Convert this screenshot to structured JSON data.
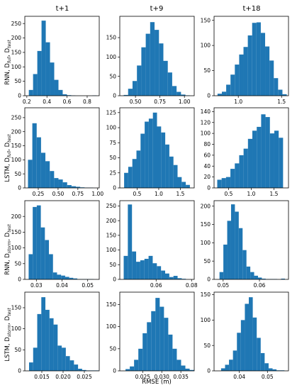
{
  "figure": {
    "xlabel": "RMSE (m)",
    "column_titles": [
      "t+1",
      "t+9",
      "t+18"
    ],
    "row_labels": [
      [
        "RNN, D",
        "full",
        ", D",
        "test"
      ],
      [
        "LSTM, D",
        "full",
        ", D",
        "test"
      ],
      [
        "RNN, D",
        "storm",
        ", D",
        "test"
      ],
      [
        "LSTM, D",
        "storm",
        ", D",
        "test"
      ]
    ]
  },
  "colors": {
    "bar": "#1f77b4"
  },
  "chart_data": [
    {
      "type": "bar",
      "row": 0,
      "col": 0,
      "title": "t+1",
      "xlim": [
        0.18,
        0.92
      ],
      "ylim": [
        0,
        275
      ],
      "xticks": [
        0.2,
        0.4,
        0.6,
        0.8
      ],
      "xticklabels": [
        "0.2",
        "0.4",
        "0.6",
        "0.8"
      ],
      "yticks": [
        0,
        50,
        100,
        150,
        200,
        250
      ],
      "yticklabels": [
        "0",
        "50",
        "100",
        "150",
        "200",
        "250"
      ],
      "bin_start": 0.22,
      "bin_width": 0.0421,
      "values": [
        20,
        75,
        155,
        260,
        185,
        115,
        55,
        20,
        5,
        2,
        1,
        0,
        0,
        0,
        0,
        1
      ]
    },
    {
      "type": "bar",
      "row": 0,
      "col": 1,
      "title": "t+9",
      "xlim": [
        0.34,
        1.1
      ],
      "ylim": [
        0,
        205
      ],
      "xticks": [
        0.5,
        0.75,
        1.0
      ],
      "xticklabels": [
        "0.50",
        "0.75",
        "1.00"
      ],
      "yticks": [
        0,
        50,
        100,
        150
      ],
      "yticklabels": [
        "0",
        "50",
        "100",
        "150"
      ],
      "bin_start": 0.38,
      "bin_width": 0.045,
      "values": [
        2,
        18,
        38,
        78,
        125,
        160,
        190,
        170,
        135,
        90,
        60,
        25,
        10,
        3,
        1
      ]
    },
    {
      "type": "bar",
      "row": 0,
      "col": 2,
      "title": "t+18",
      "xlim": [
        0.72,
        1.58
      ],
      "ylim": [
        0,
        158
      ],
      "xticks": [
        1.0,
        1.5
      ],
      "xticklabels": [
        "1.0",
        "1.5"
      ],
      "yticks": [
        0,
        50,
        100,
        150
      ],
      "yticklabels": [
        "0",
        "50",
        "100",
        "150"
      ],
      "bin_start": 0.76,
      "bin_width": 0.05,
      "values": [
        4,
        8,
        22,
        42,
        62,
        82,
        97,
        120,
        145,
        146,
        125,
        98,
        70,
        35,
        12,
        3
      ]
    },
    {
      "type": "bar",
      "row": 1,
      "col": 0,
      "xlim": [
        0.08,
        1.02
      ],
      "ylim": [
        0,
        285
      ],
      "xticks": [
        0.25,
        0.5,
        0.75,
        1.0
      ],
      "xticklabels": [
        "0.25",
        "0.50",
        "0.75",
        "1.00"
      ],
      "yticks": [
        0,
        50,
        100,
        150,
        200,
        250
      ],
      "yticklabels": [
        "0",
        "50",
        "100",
        "150",
        "200",
        "250"
      ],
      "bin_start": 0.12,
      "bin_width": 0.055,
      "values": [
        100,
        230,
        180,
        125,
        95,
        60,
        35,
        30,
        20,
        10,
        6,
        4,
        2,
        1,
        1
      ]
    },
    {
      "type": "bar",
      "row": 1,
      "col": 1,
      "xlim": [
        0.1,
        1.82
      ],
      "ylim": [
        0,
        133
      ],
      "xticks": [
        0.5,
        1.0,
        1.5
      ],
      "xticklabels": [
        "0.5",
        "1.0",
        "1.5"
      ],
      "yticks": [
        0,
        25,
        50,
        75,
        100,
        125
      ],
      "yticklabels": [
        "0",
        "25",
        "50",
        "75",
        "100",
        "125"
      ],
      "bin_start": 0.2,
      "bin_width": 0.095,
      "values": [
        25,
        35,
        48,
        62,
        90,
        110,
        115,
        125,
        102,
        92,
        72,
        52,
        38,
        18,
        10,
        5
      ]
    },
    {
      "type": "bar",
      "row": 1,
      "col": 2,
      "xlim": [
        0.18,
        1.82
      ],
      "ylim": [
        0,
        147
      ],
      "xticks": [
        0.5,
        1.0,
        1.5
      ],
      "xticklabels": [
        "0.5",
        "1.0",
        "1.5"
      ],
      "yticks": [
        0,
        20,
        40,
        60,
        80,
        100,
        120,
        140
      ],
      "yticklabels": [
        "0",
        "20",
        "40",
        "60",
        "80",
        "100",
        "120",
        "140"
      ],
      "bin_start": 0.25,
      "bin_width": 0.0967,
      "values": [
        15,
        18,
        20,
        35,
        45,
        60,
        72,
        90,
        105,
        112,
        135,
        130,
        100,
        105,
        92
      ]
    },
    {
      "type": "bar",
      "row": 2,
      "col": 0,
      "xlim": [
        0.0255,
        0.0545
      ],
      "ylim": [
        0,
        250
      ],
      "xticks": [
        0.03,
        0.04,
        0.05
      ],
      "xticklabels": [
        "0.03",
        "0.04",
        "0.05"
      ],
      "yticks": [
        0,
        50,
        100,
        150,
        200
      ],
      "yticklabels": [
        "0",
        "50",
        "100",
        "150",
        "200"
      ],
      "bin_start": 0.027,
      "bin_width": 0.00158,
      "values": [
        80,
        230,
        235,
        165,
        125,
        80,
        22,
        15,
        12,
        8,
        5,
        3,
        1,
        1,
        1,
        1
      ]
    },
    {
      "type": "bar",
      "row": 2,
      "col": 1,
      "xlim": [
        0.0395,
        0.0815
      ],
      "ylim": [
        0,
        268
      ],
      "xticks": [
        0.06,
        0.08
      ],
      "xticklabels": [
        "0.06",
        "0.08"
      ],
      "yticks": [
        0,
        50,
        100,
        150,
        200,
        250
      ],
      "yticklabels": [
        "0",
        "50",
        "100",
        "150",
        "200",
        "250"
      ],
      "bin_start": 0.0417,
      "bin_width": 0.00234,
      "values": [
        80,
        255,
        95,
        60,
        65,
        70,
        80,
        55,
        45,
        30,
        20,
        8,
        12,
        4,
        2
      ]
    },
    {
      "type": "bar",
      "row": 2,
      "col": 2,
      "xlim": [
        0.0475,
        0.068
      ],
      "ylim": [
        0,
        215
      ],
      "xticks": [
        0.05,
        0.06
      ],
      "xticklabels": [
        "0.05",
        "0.06"
      ],
      "yticks": [
        0,
        50,
        100,
        150,
        200
      ],
      "yticklabels": [
        "0",
        "50",
        "100",
        "150",
        "200"
      ],
      "bin_start": 0.049,
      "bin_width": 0.00106,
      "values": [
        20,
        95,
        160,
        205,
        185,
        140,
        80,
        35,
        20,
        10,
        5,
        2,
        1,
        1,
        1,
        0,
        2
      ]
    },
    {
      "type": "bar",
      "row": 3,
      "col": 0,
      "xlim": [
        0.011,
        0.0285
      ],
      "ylim": [
        0,
        187
      ],
      "xticks": [
        0.015,
        0.02,
        0.025
      ],
      "xticklabels": [
        "0.015",
        "0.020",
        "0.025"
      ],
      "yticks": [
        0,
        50,
        100,
        150
      ],
      "yticklabels": [
        "0",
        "50",
        "100",
        "150"
      ],
      "bin_start": 0.012,
      "bin_width": 0.00096,
      "values": [
        20,
        55,
        135,
        175,
        145,
        125,
        110,
        60,
        55,
        35,
        25,
        15,
        5,
        2,
        1,
        1,
        1
      ]
    },
    {
      "type": "bar",
      "row": 3,
      "col": 1,
      "xlim": [
        0.019,
        0.0385
      ],
      "ylim": [
        0,
        178
      ],
      "xticks": [
        0.025,
        0.03,
        0.035
      ],
      "xticklabels": [
        "0.025",
        "0.030",
        "0.035"
      ],
      "yticks": [
        0,
        50,
        100,
        150
      ],
      "yticklabels": [
        "0",
        "50",
        "100",
        "150"
      ],
      "bin_start": 0.0205,
      "bin_width": 0.00112,
      "values": [
        4,
        10,
        25,
        50,
        85,
        110,
        135,
        165,
        145,
        120,
        82,
        50,
        25,
        12,
        5,
        2
      ]
    },
    {
      "type": "bar",
      "row": 3,
      "col": 2,
      "xlim": [
        0.031,
        0.0575
      ],
      "ylim": [
        0,
        155
      ],
      "xticks": [
        0.04,
        0.05
      ],
      "xticklabels": [
        "0.04",
        "0.05"
      ],
      "yticks": [
        0,
        50,
        100,
        150
      ],
      "yticklabels": [
        "0",
        "50",
        "100",
        "150"
      ],
      "bin_start": 0.0335,
      "bin_width": 0.00141,
      "values": [
        5,
        12,
        22,
        40,
        75,
        100,
        132,
        145,
        105,
        65,
        35,
        15,
        5,
        3,
        1,
        1
      ]
    }
  ]
}
